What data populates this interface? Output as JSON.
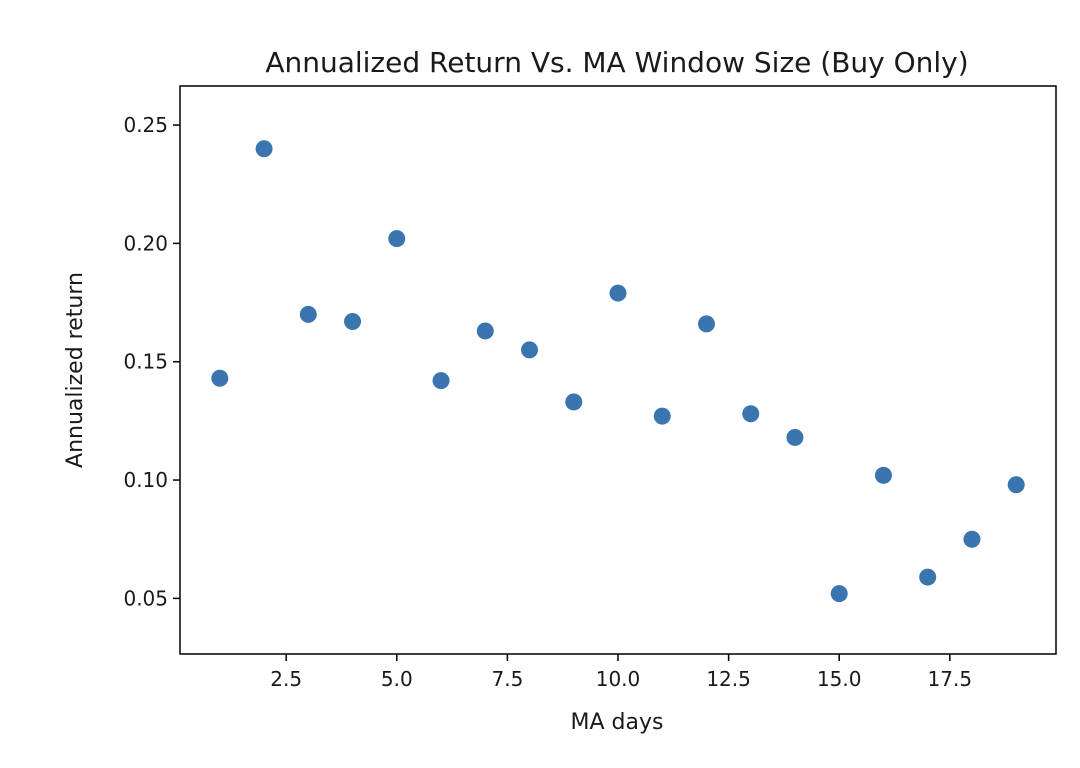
{
  "chart_data": {
    "type": "scatter",
    "title": "Annualized Return Vs. MA Window Size (Buy Only)",
    "xlabel": "MA days",
    "ylabel": "Annualized return",
    "xlim": [
      0.1,
      19.9
    ],
    "ylim": [
      0.0265,
      0.2665
    ],
    "grid": false,
    "x_ticks": [
      2.5,
      5.0,
      7.5,
      10.0,
      12.5,
      15.0,
      17.5
    ],
    "x_tick_labels": [
      "2.5",
      "5.0",
      "7.5",
      "10.0",
      "12.5",
      "15.0",
      "17.5"
    ],
    "y_ticks": [
      0.05,
      0.1,
      0.15,
      0.2,
      0.25
    ],
    "y_tick_labels": [
      "0.05",
      "0.10",
      "0.15",
      "0.20",
      "0.25"
    ],
    "series": [
      {
        "color": "#3b75af",
        "x": [
          1,
          2,
          3,
          4,
          5,
          6,
          7,
          8,
          9,
          10,
          11,
          12,
          13,
          14,
          15,
          16,
          17,
          18,
          19
        ],
        "y": [
          0.143,
          0.24,
          0.17,
          0.167,
          0.202,
          0.142,
          0.163,
          0.155,
          0.133,
          0.179,
          0.127,
          0.166,
          0.128,
          0.118,
          0.052,
          0.102,
          0.059,
          0.075,
          0.098
        ]
      }
    ]
  }
}
